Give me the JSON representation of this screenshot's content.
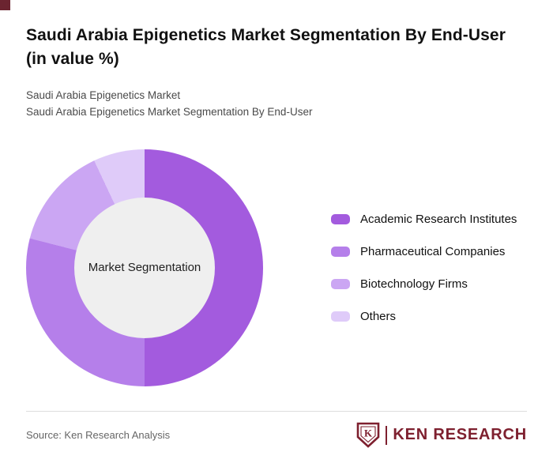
{
  "header": {
    "title": "Saudi Arabia Epigenetics Market Segmentation By End-User (in value %)",
    "subtitle1": "Saudi Arabia Epigenetics Market",
    "subtitle2": "Saudi Arabia Epigenetics Market Segmentation By End-User"
  },
  "chart_data": {
    "type": "pie",
    "subtype": "donut",
    "title": "Saudi Arabia Epigenetics Market Segmentation By End-User (in value %)",
    "center_label": "Market Segmentation",
    "categories": [
      "Academic Research Institutes",
      "Pharmaceutical Companies",
      "Biotechnology Firms",
      "Others"
    ],
    "values": [
      50,
      29,
      14,
      7
    ],
    "unit": "value %",
    "colors": [
      "#A35BDE",
      "#B57FEA",
      "#CBA6F3",
      "#DFCBF9"
    ],
    "start_angle_deg": 0,
    "direction": "clockwise",
    "legend_position": "right",
    "value_labels_shown": false,
    "note": "Slice values estimated from arc angles; no numeric labels are shown in the chart"
  },
  "footer": {
    "source": "Source: Ken Research Analysis",
    "brand": "KEN RESEARCH",
    "logo_letter": "K"
  },
  "accent_colors": {
    "brand_maroon": "#7E202F",
    "corner_square": "#6B2430",
    "donut_hole": "#EFEFEF"
  }
}
